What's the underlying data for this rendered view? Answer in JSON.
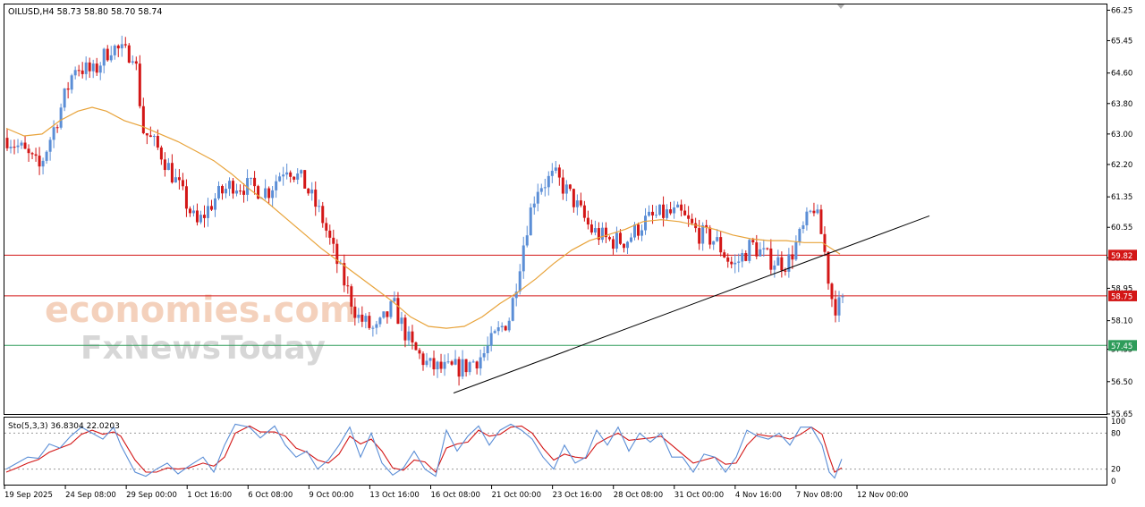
{
  "main_header": "OILUSD,H4  58.73 58.80 58.70 58.74",
  "sto_header": "Sto(5,3,3) 36.8304 22.0203",
  "watermark": {
    "top": "economies.com",
    "bottom": "FxNewsToday"
  },
  "colors": {
    "bull": "#5b8ed6",
    "bear": "#d31616",
    "ma": "#e8a33a",
    "stoch_main": "#5b8ed6",
    "stoch_signal": "#d31616",
    "red_level": "#d31616",
    "green_level": "#2e9c5a",
    "trendline": "#000000"
  },
  "chart_data": {
    "type": "candlestick",
    "symbol": "OILUSD",
    "timeframe": "H4",
    "ohlc_last": {
      "open": 58.73,
      "high": 58.8,
      "low": 58.7,
      "close": 58.74
    },
    "y_ticks": [
      "66.25",
      "65.45",
      "64.60",
      "63.80",
      "63.00",
      "62.20",
      "61.35",
      "60.55",
      "59.75",
      "58.95",
      "58.10",
      "57.35",
      "56.50",
      "55.65"
    ],
    "ylim": [
      55.65,
      66.4
    ],
    "x_ticks": [
      "19 Sep 2025",
      "24 Sep 08:00",
      "29 Sep 00:00",
      "1 Oct 16:00",
      "6 Oct 08:00",
      "9 Oct 00:00",
      "13 Oct 16:00",
      "16 Oct 08:00",
      "21 Oct 00:00",
      "23 Oct 16:00",
      "28 Oct 08:00",
      "31 Oct 00:00",
      "4 Nov 16:00",
      "7 Nov 08:00",
      "12 Nov 00:00"
    ],
    "bar_count": 234,
    "price_path_closes": [
      [
        0,
        62.9
      ],
      [
        8,
        62.6
      ],
      [
        18,
        62.1
      ],
      [
        28,
        63.4
      ],
      [
        38,
        64.8
      ],
      [
        48,
        64.6
      ],
      [
        58,
        65.3
      ],
      [
        66,
        65.1
      ],
      [
        71,
        65.2
      ],
      [
        76,
        63.1
      ],
      [
        86,
        62.5
      ],
      [
        96,
        61.6
      ],
      [
        106,
        60.6
      ],
      [
        116,
        61.3
      ],
      [
        126,
        61.7
      ],
      [
        136,
        61.6
      ],
      [
        146,
        61.5
      ],
      [
        156,
        62.2
      ],
      [
        166,
        61.7
      ],
      [
        176,
        60.8
      ],
      [
        186,
        59.4
      ],
      [
        196,
        58.2
      ],
      [
        206,
        57.8
      ],
      [
        216,
        58.5
      ],
      [
        226,
        57.4
      ],
      [
        236,
        56.9
      ],
      [
        246,
        56.8
      ],
      [
        256,
        56.9
      ],
      [
        266,
        57.2
      ],
      [
        276,
        57.9
      ],
      [
        281,
        58.2
      ],
      [
        286,
        59.5
      ],
      [
        291,
        60.7
      ],
      [
        296,
        61.6
      ],
      [
        306,
        61.9
      ],
      [
        316,
        61.3
      ],
      [
        326,
        60.5
      ],
      [
        336,
        60.2
      ],
      [
        346,
        60.2
      ],
      [
        356,
        60.7
      ],
      [
        366,
        60.9
      ],
      [
        376,
        60.9
      ],
      [
        386,
        60.4
      ],
      [
        396,
        60.2
      ],
      [
        406,
        59.5
      ],
      [
        416,
        60.1
      ],
      [
        426,
        59.7
      ],
      [
        436,
        59.6
      ],
      [
        446,
        60.6
      ],
      [
        451,
        61.1
      ],
      [
        456,
        60.2
      ],
      [
        460,
        58.9
      ],
      [
        462,
        58.5
      ],
      [
        466,
        58.5
      ],
      [
        467,
        58.74
      ]
    ],
    "moving_average": [
      [
        0,
        63.15
      ],
      [
        10,
        62.95
      ],
      [
        20,
        63.0
      ],
      [
        30,
        63.35
      ],
      [
        40,
        63.6
      ],
      [
        48,
        63.7
      ],
      [
        56,
        63.6
      ],
      [
        66,
        63.35
      ],
      [
        76,
        63.2
      ],
      [
        86,
        63.0
      ],
      [
        96,
        62.8
      ],
      [
        106,
        62.55
      ],
      [
        116,
        62.3
      ],
      [
        126,
        61.95
      ],
      [
        136,
        61.55
      ],
      [
        146,
        61.2
      ],
      [
        156,
        60.8
      ],
      [
        166,
        60.4
      ],
      [
        176,
        60.0
      ],
      [
        186,
        59.65
      ],
      [
        196,
        59.3
      ],
      [
        206,
        58.95
      ],
      [
        216,
        58.6
      ],
      [
        226,
        58.2
      ],
      [
        236,
        57.95
      ],
      [
        246,
        57.9
      ],
      [
        256,
        57.95
      ],
      [
        266,
        58.2
      ],
      [
        276,
        58.55
      ],
      [
        281,
        58.7
      ],
      [
        286,
        58.85
      ],
      [
        296,
        59.2
      ],
      [
        306,
        59.6
      ],
      [
        316,
        59.95
      ],
      [
        326,
        60.2
      ],
      [
        336,
        60.35
      ],
      [
        346,
        60.5
      ],
      [
        356,
        60.7
      ],
      [
        366,
        60.75
      ],
      [
        376,
        60.7
      ],
      [
        386,
        60.6
      ],
      [
        396,
        60.5
      ],
      [
        406,
        60.35
      ],
      [
        416,
        60.25
      ],
      [
        426,
        60.2
      ],
      [
        436,
        60.2
      ],
      [
        446,
        60.15
      ],
      [
        456,
        60.15
      ],
      [
        466,
        59.85
      ]
    ],
    "levels": [
      {
        "value": 59.82,
        "label": "59.82",
        "color": "#d31616"
      },
      {
        "value": 58.75,
        "label": "58.75",
        "color": "#d31616"
      },
      {
        "value": 57.45,
        "label": "57.45",
        "color": "#2e9c5a"
      }
    ],
    "trendline": {
      "from": [
        250,
        56.2
      ],
      "to": [
        516,
        60.85
      ]
    },
    "oscillator": {
      "name": "Sto(5,3,3)",
      "main_value": 36.8304,
      "signal_value": 22.0203,
      "y_ticks": [
        "100",
        "80",
        "20",
        "0"
      ],
      "levels": [
        80,
        20
      ],
      "main_path": [
        [
          0,
          20
        ],
        [
          6,
          30
        ],
        [
          12,
          40
        ],
        [
          18,
          38
        ],
        [
          24,
          62
        ],
        [
          30,
          55
        ],
        [
          36,
          75
        ],
        [
          42,
          90
        ],
        [
          48,
          80
        ],
        [
          54,
          70
        ],
        [
          60,
          90
        ],
        [
          64,
          60
        ],
        [
          72,
          15
        ],
        [
          78,
          8
        ],
        [
          84,
          20
        ],
        [
          90,
          30
        ],
        [
          96,
          12
        ],
        [
          102,
          25
        ],
        [
          110,
          40
        ],
        [
          116,
          15
        ],
        [
          122,
          60
        ],
        [
          128,
          95
        ],
        [
          136,
          90
        ],
        [
          142,
          72
        ],
        [
          150,
          92
        ],
        [
          156,
          60
        ],
        [
          162,
          40
        ],
        [
          168,
          50
        ],
        [
          174,
          20
        ],
        [
          180,
          35
        ],
        [
          186,
          60
        ],
        [
          192,
          90
        ],
        [
          198,
          40
        ],
        [
          204,
          80
        ],
        [
          210,
          30
        ],
        [
          216,
          10
        ],
        [
          222,
          22
        ],
        [
          228,
          50
        ],
        [
          234,
          20
        ],
        [
          240,
          8
        ],
        [
          246,
          85
        ],
        [
          252,
          50
        ],
        [
          258,
          75
        ],
        [
          264,
          92
        ],
        [
          270,
          60
        ],
        [
          276,
          85
        ],
        [
          282,
          95
        ],
        [
          288,
          85
        ],
        [
          294,
          70
        ],
        [
          300,
          40
        ],
        [
          306,
          20
        ],
        [
          312,
          60
        ],
        [
          318,
          30
        ],
        [
          324,
          40
        ],
        [
          330,
          85
        ],
        [
          336,
          60
        ],
        [
          342,
          90
        ],
        [
          348,
          50
        ],
        [
          354,
          80
        ],
        [
          360,
          65
        ],
        [
          366,
          80
        ],
        [
          372,
          40
        ],
        [
          378,
          40
        ],
        [
          384,
          15
        ],
        [
          390,
          45
        ],
        [
          396,
          40
        ],
        [
          402,
          15
        ],
        [
          408,
          40
        ],
        [
          414,
          85
        ],
        [
          420,
          75
        ],
        [
          426,
          70
        ],
        [
          432,
          80
        ],
        [
          438,
          60
        ],
        [
          444,
          90
        ],
        [
          450,
          90
        ],
        [
          456,
          60
        ],
        [
          460,
          15
        ],
        [
          463,
          5
        ],
        [
          467,
          36.83
        ]
      ],
      "signal_path": [
        [
          0,
          15
        ],
        [
          6,
          22
        ],
        [
          12,
          30
        ],
        [
          18,
          36
        ],
        [
          24,
          48
        ],
        [
          30,
          55
        ],
        [
          36,
          62
        ],
        [
          42,
          78
        ],
        [
          48,
          85
        ],
        [
          54,
          78
        ],
        [
          60,
          82
        ],
        [
          64,
          75
        ],
        [
          72,
          35
        ],
        [
          78,
          15
        ],
        [
          84,
          15
        ],
        [
          90,
          22
        ],
        [
          96,
          20
        ],
        [
          102,
          22
        ],
        [
          110,
          30
        ],
        [
          116,
          25
        ],
        [
          122,
          40
        ],
        [
          128,
          80
        ],
        [
          136,
          92
        ],
        [
          142,
          82
        ],
        [
          150,
          82
        ],
        [
          156,
          75
        ],
        [
          162,
          55
        ],
        [
          168,
          48
        ],
        [
          174,
          35
        ],
        [
          180,
          30
        ],
        [
          186,
          45
        ],
        [
          192,
          75
        ],
        [
          198,
          62
        ],
        [
          204,
          70
        ],
        [
          210,
          50
        ],
        [
          216,
          22
        ],
        [
          222,
          18
        ],
        [
          228,
          35
        ],
        [
          234,
          32
        ],
        [
          240,
          15
        ],
        [
          246,
          55
        ],
        [
          252,
          62
        ],
        [
          258,
          65
        ],
        [
          264,
          85
        ],
        [
          270,
          75
        ],
        [
          276,
          78
        ],
        [
          282,
          90
        ],
        [
          288,
          92
        ],
        [
          294,
          80
        ],
        [
          300,
          55
        ],
        [
          306,
          35
        ],
        [
          312,
          45
        ],
        [
          318,
          40
        ],
        [
          324,
          38
        ],
        [
          330,
          62
        ],
        [
          336,
          72
        ],
        [
          342,
          80
        ],
        [
          348,
          68
        ],
        [
          354,
          70
        ],
        [
          360,
          72
        ],
        [
          366,
          75
        ],
        [
          372,
          60
        ],
        [
          378,
          45
        ],
        [
          384,
          30
        ],
        [
          390,
          35
        ],
        [
          396,
          40
        ],
        [
          402,
          28
        ],
        [
          408,
          30
        ],
        [
          414,
          60
        ],
        [
          420,
          78
        ],
        [
          426,
          75
        ],
        [
          432,
          75
        ],
        [
          438,
          70
        ],
        [
          444,
          78
        ],
        [
          450,
          90
        ],
        [
          456,
          78
        ],
        [
          460,
          40
        ],
        [
          463,
          15
        ],
        [
          467,
          22.02
        ]
      ]
    }
  }
}
